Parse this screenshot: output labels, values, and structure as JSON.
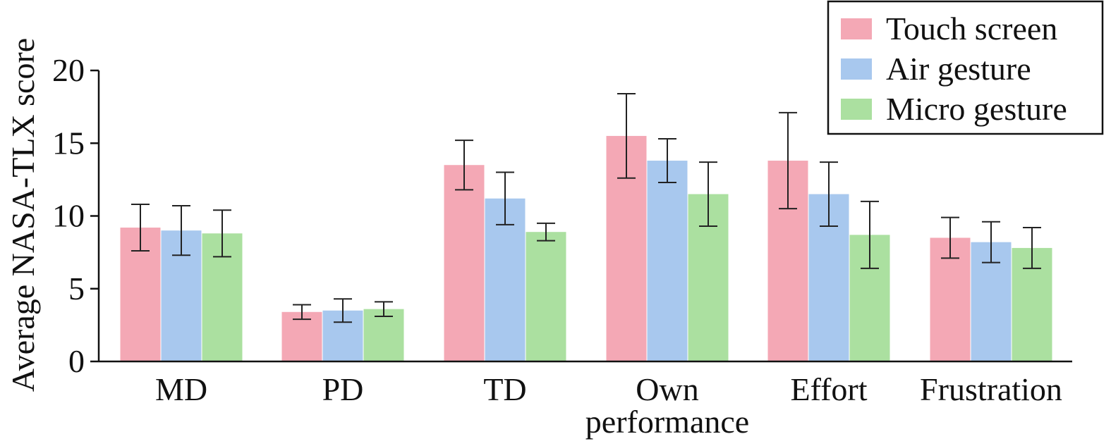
{
  "chart_data": {
    "type": "bar",
    "ylabel": "Average NASA-TLX score",
    "xlabel": "",
    "title": "",
    "ylim": [
      0,
      20
    ],
    "yticks": [
      0,
      5,
      10,
      15,
      20
    ],
    "categories": [
      {
        "lines": [
          "MD"
        ]
      },
      {
        "lines": [
          "PD"
        ]
      },
      {
        "lines": [
          "TD"
        ]
      },
      {
        "lines": [
          "Own",
          "performance"
        ]
      },
      {
        "lines": [
          "Effort"
        ]
      },
      {
        "lines": [
          "Frustration"
        ]
      }
    ],
    "series": [
      {
        "name": "Touch screen",
        "color": "#f4a8b5",
        "values": [
          9.2,
          3.4,
          13.5,
          15.5,
          13.8,
          8.5
        ],
        "errors": [
          1.6,
          0.5,
          1.7,
          2.9,
          3.3,
          1.4
        ]
      },
      {
        "name": "Air gesture",
        "color": "#a8c8ee",
        "values": [
          9.0,
          3.5,
          11.2,
          13.8,
          11.5,
          8.2
        ],
        "errors": [
          1.7,
          0.8,
          1.8,
          1.5,
          2.2,
          1.4
        ]
      },
      {
        "name": "Micro gesture",
        "color": "#abe0a0",
        "values": [
          8.8,
          3.6,
          8.9,
          11.5,
          8.7,
          7.8
        ],
        "errors": [
          1.6,
          0.5,
          0.6,
          2.2,
          2.3,
          1.4
        ]
      }
    ],
    "legend_position": "top-right",
    "grid": false
  }
}
